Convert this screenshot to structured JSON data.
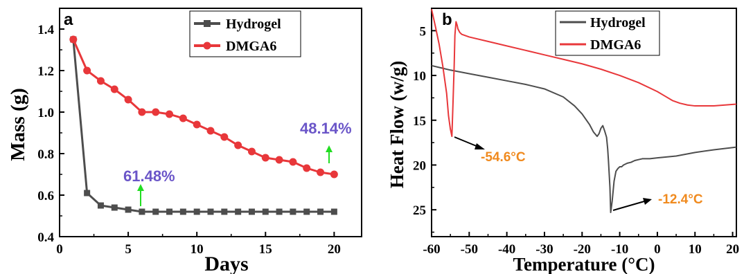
{
  "colors": {
    "hydrogel": "#4d4d4d",
    "dmga6": "#e8373a",
    "percent_text": "#6a55c8",
    "arrow_green": "#22dd22",
    "temp_text": "#f08a1e"
  },
  "chart_data": [
    {
      "type": "line",
      "panel_label": "a",
      "xlabel": "Days",
      "ylabel": "Mass (g)",
      "xlim": [
        0,
        22
      ],
      "ylim": [
        0.4,
        1.5
      ],
      "xticks": [
        "0",
        "5",
        "10",
        "15",
        "20"
      ],
      "yticks": [
        "0.4",
        "0.6",
        "0.8",
        "1.0",
        "1.2",
        "1.4"
      ],
      "legend_position": "top-right",
      "series": [
        {
          "name": "Hydrogel",
          "marker": "square",
          "color": "#4d4d4d",
          "x": [
            1,
            2,
            3,
            4,
            5,
            6,
            7,
            8,
            9,
            10,
            11,
            12,
            13,
            14,
            15,
            16,
            17,
            18,
            19,
            20
          ],
          "y": [
            1.35,
            0.61,
            0.55,
            0.54,
            0.53,
            0.52,
            0.52,
            0.52,
            0.52,
            0.52,
            0.52,
            0.52,
            0.52,
            0.52,
            0.52,
            0.52,
            0.52,
            0.52,
            0.52,
            0.52
          ]
        },
        {
          "name": "DMGA6",
          "marker": "circle",
          "color": "#e8373a",
          "x": [
            1,
            2,
            3,
            4,
            5,
            6,
            7,
            8,
            9,
            10,
            11,
            12,
            13,
            14,
            15,
            16,
            17,
            18,
            19,
            20
          ],
          "y": [
            1.35,
            1.2,
            1.15,
            1.11,
            1.06,
            1.0,
            1.0,
            0.99,
            0.97,
            0.94,
            0.91,
            0.88,
            0.84,
            0.81,
            0.78,
            0.77,
            0.76,
            0.73,
            0.71,
            0.7
          ]
        }
      ],
      "annotations": [
        {
          "text": "61.48%",
          "x": 6,
          "y": 0.52
        },
        {
          "text": "48.14%",
          "x": 20,
          "y": 0.7
        }
      ]
    },
    {
      "type": "line",
      "panel_label": "b",
      "xlabel": "Temperature (°C)",
      "ylabel": "Heat Flow (w/g)",
      "xlim": [
        -60,
        21
      ],
      "ylim": [
        2.5,
        28
      ],
      "y_inverted": true,
      "xticks": [
        "-60",
        "-50",
        "-40",
        "-30",
        "-20",
        "-10",
        "0",
        "10",
        "20"
      ],
      "yticks": [
        "5",
        "10",
        "15",
        "20",
        "25"
      ],
      "legend_position": "top-right",
      "series": [
        {
          "name": "Hydrogel",
          "color": "#4d4d4d",
          "x": [
            -60,
            -55,
            -50,
            -45,
            -40,
            -35,
            -30,
            -25,
            -22,
            -20,
            -18,
            -17,
            -16,
            -15.5,
            -15,
            -14.5,
            -14,
            -13.5,
            -13.2,
            -13,
            -12.6,
            -12.4,
            -12,
            -11.5,
            -11,
            -10.5,
            -10,
            -9.5,
            -9,
            -8,
            -7,
            -6,
            -5,
            -4,
            -2,
            0,
            5,
            10,
            15,
            21
          ],
          "y": [
            8.9,
            9.4,
            9.8,
            10.2,
            10.6,
            11.0,
            11.5,
            12.4,
            13.4,
            14.3,
            15.5,
            16.3,
            16.8,
            16.5,
            15.9,
            15.6,
            16.2,
            16.9,
            18.2,
            19.5,
            22.5,
            25.3,
            24.0,
            21.8,
            20.7,
            20.4,
            20.2,
            20.2,
            20.0,
            19.8,
            19.7,
            19.5,
            19.4,
            19.3,
            19.3,
            19.2,
            19.0,
            18.6,
            18.3,
            18.0
          ]
        },
        {
          "name": "DMGA6",
          "color": "#e8373a",
          "x": [
            -60,
            -59,
            -58,
            -57,
            -56,
            -55.5,
            -55,
            -54.6,
            -54.3,
            -54,
            -53.8,
            -53.5,
            -53.2,
            -53,
            -52.5,
            -52,
            -50,
            -45,
            -40,
            -35,
            -30,
            -25,
            -20,
            -15,
            -10,
            -5,
            0,
            2,
            4,
            6,
            8,
            10,
            12,
            15,
            18,
            21
          ],
          "y": [
            2.6,
            4.5,
            6.5,
            9.0,
            12.0,
            14.5,
            16.0,
            16.8,
            13.0,
            9.0,
            5.5,
            4.0,
            4.4,
            4.8,
            5.2,
            5.4,
            5.7,
            6.2,
            6.7,
            7.2,
            7.7,
            8.2,
            8.7,
            9.3,
            10.0,
            10.8,
            11.8,
            12.3,
            12.8,
            13.1,
            13.3,
            13.4,
            13.4,
            13.4,
            13.3,
            13.2
          ]
        }
      ],
      "annotations": [
        {
          "text": "-54.6°C",
          "x": -54.6,
          "y": 16.8
        },
        {
          "text": "-12.4°C",
          "x": -12.4,
          "y": 25.3
        }
      ]
    }
  ]
}
